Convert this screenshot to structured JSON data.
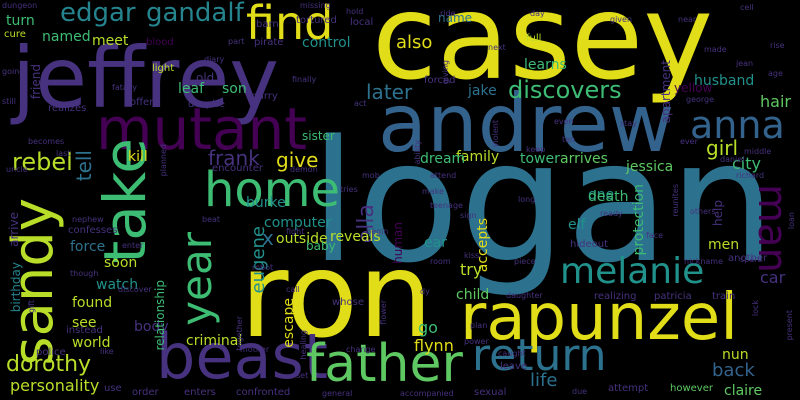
{
  "words": {
    "casey": "casey",
    "jeffrey": "jeffrey",
    "logan": "logan",
    "ron": "ron",
    "andrew": "andrew",
    "rapunzel": "rapunzel",
    "mutant": "mutant",
    "take": "take",
    "beast": "beast",
    "sandy": "sandy",
    "home": "home",
    "father": "father",
    "return": "return",
    "find": "find",
    "year": "year",
    "melanie": "melanie",
    "anna": "anna",
    "man": "man",
    "edgar": "edgar",
    "gandalf": "gandalf",
    "discovers": "discovers",
    "rebel": "rebel",
    "dorothy": "dorothy",
    "frank": "frank",
    "later": "later",
    "girl": "girl",
    "ella": "ella",
    "give": "give",
    "eugene": "eugene",
    "also": "also",
    "tell": "tell",
    "back": "back",
    "life": "life",
    "x": "x",
    "kill": "kill",
    "son": "son",
    "hair": "hair",
    "city": "city",
    "husband": "husband",
    "family": "family",
    "arrives": "arrives",
    "tower": "tower",
    "learns": "learns",
    "control": "control",
    "name": "name",
    "jake": "jake",
    "leaf": "leaf",
    "meet": "meet",
    "named": "named",
    "turn": "turn",
    "one": "one",
    "death": "death",
    "reveals": "reveals",
    "outside": "outside",
    "computer": "computer",
    "burke": "burke",
    "baby": "baby",
    "accepts": "accepts",
    "human": "human",
    "dream": "dream",
    "elf": "elf",
    "ear": "ear",
    "try": "try",
    "child": "child",
    "flynn": "flynn",
    "go": "go",
    "escape": "escape",
    "criminal": "criminal",
    "body": "body",
    "world": "world",
    "found": "found",
    "see": "see",
    "watch": "watch",
    "soon": "soon",
    "force": "force",
    "personality": "personality",
    "relationship": "relationship",
    "sister": "sister",
    "jessica": "jessica",
    "help": "help",
    "car": "car",
    "men": "men",
    "nun": "nun",
    "claire": "claire",
    "protection": "protection",
    "apartment": "apartment",
    "yellow": "yellow",
    "birthday": "birthday",
    "arrive": "arrive",
    "friend": "friend",
    "tortured": "tortured",
    "barn": "barn",
    "missing": "missing",
    "hold": "hold",
    "local": "local",
    "ride": "ride",
    "day": "day",
    "cell": "cell",
    "cure": "cure",
    "blood": "blood",
    "part": "part",
    "pirate": "pirate",
    "diary": "diary",
    "light": "light",
    "old": "old",
    "marry": "marry",
    "fatally": "fatally",
    "realizes": "realizes",
    "offer": "offer",
    "despite": "despite",
    "finally": "finally",
    "act": "act",
    "forced": "forced",
    "giving": "giving",
    "next": "next",
    "full": "full",
    "given": "given",
    "near": "near",
    "made": "made",
    "dungeon": "dungeon",
    "going": "going",
    "still": "still",
    "becomes": "becomes",
    "last": "last",
    "uncle": "uncle",
    "nephew": "nephew",
    "confesses": "confesses",
    "though": "though",
    "gift": "gift",
    "police": "police",
    "use": "use",
    "order": "order",
    "enters": "enters",
    "confronted": "confronted",
    "general": "general",
    "accompanied": "accompanied",
    "sexual": "sexual",
    "due": "due",
    "attempt": "attempt",
    "however": "however",
    "like": "like",
    "instead": "instead",
    "planned": "planned",
    "encounter": "encounter",
    "demon": "demon",
    "mob": "mob",
    "attend": "attend",
    "fight": "fight",
    "teenage": "teenage",
    "begin": "begin",
    "robot": "robot",
    "discover": "discover",
    "enter": "enter",
    "call": "call",
    "together": "together",
    "mother": "mother",
    "healing": "healing",
    "whose": "whose",
    "change": "change",
    "dy": "dy",
    "flower": "flower",
    "plan": "plan",
    "caught": "caught",
    "leave": "leave",
    "power": "power",
    "room": "room",
    "kiss": "kiss",
    "piece": "piece",
    "hideout": "hideout",
    "realizing": "realizing",
    "daughter": "daughter",
    "patricia": "patricia",
    "train": "train",
    "lock": "lock",
    "spare": "spare",
    "another": "another",
    "nickname": "nickname",
    "loan": "loan",
    "present": "present",
    "others": "others",
    "reunites": "reunites",
    "richard": "richard",
    "daniel": "daniel",
    "middle": "middle",
    "ever": "ever",
    "ten": "ten",
    "keep": "keep",
    "even": "even",
    "violent": "violent",
    "ability": "ability",
    "make": "make",
    "long": "long",
    "george": "george",
    "age": "age",
    "jean": "jean",
    "rise": "rise",
    "beat": "beat",
    "set": "set",
    "sign": "sign",
    "tries": "tries",
    "ready": "ready",
    "face": "face",
    "stay": "stay"
  },
  "palette": {
    "background": "#000000",
    "yellow": "#e1dd18",
    "light_green": "#b8de29",
    "green": "#3dbc74",
    "green2": "#5ec962",
    "teal": "#21918c",
    "dark_teal": "#25848e",
    "blue": "#33638d",
    "slate_blue": "#2c728e",
    "indigo": "#46327e",
    "purple": "#440154",
    "dark_purple": "#482475"
  }
}
